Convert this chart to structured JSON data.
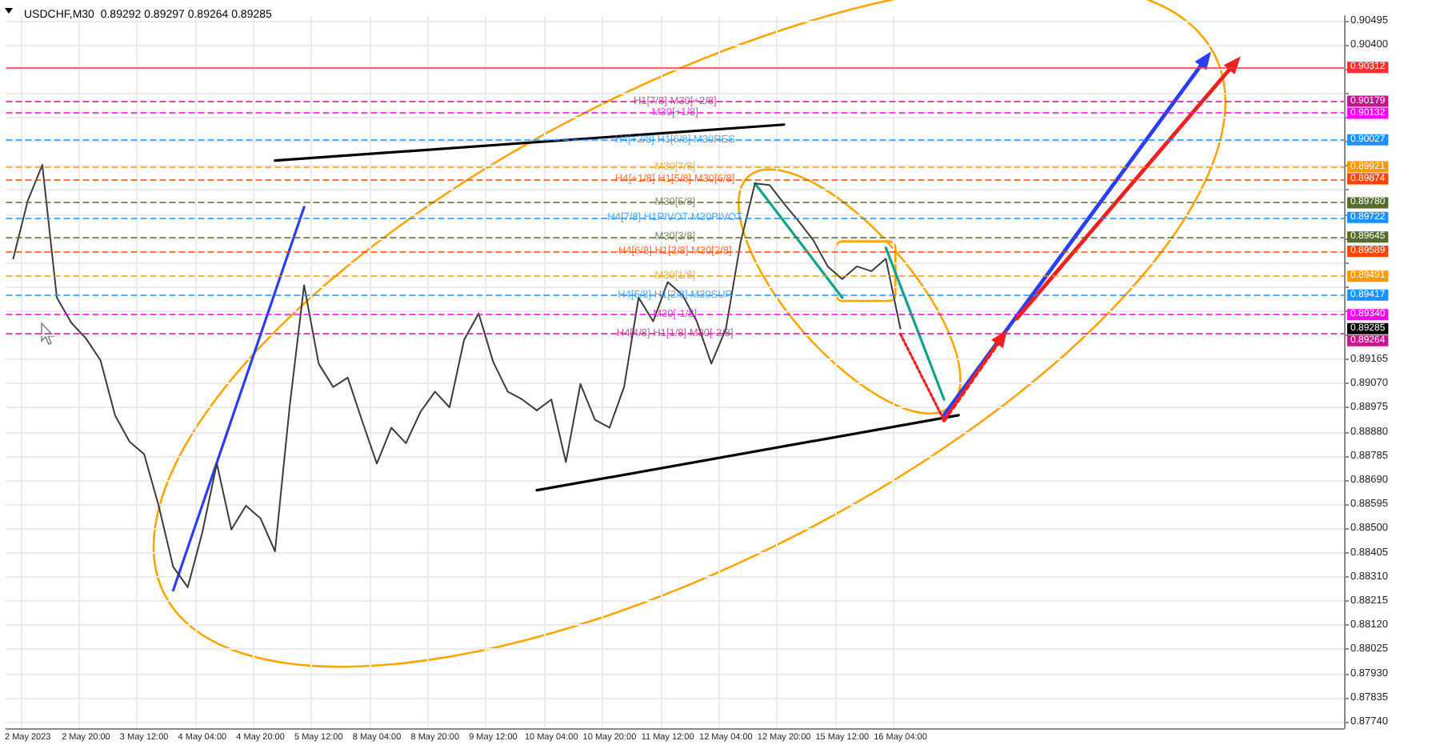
{
  "chart_data": {
    "type": "line",
    "title": "USDCHF,M30  0.89292 0.89297 0.89264 0.89285",
    "grid": true,
    "categories": [
      null,
      "2 May 2023",
      null,
      null,
      null,
      "2 May 20:00",
      null,
      null,
      null,
      "3 May 12:00",
      null,
      null,
      null,
      "4 May 04:00",
      null,
      null,
      null,
      "4 May 20:00",
      null,
      null,
      null,
      "5 May 12:00",
      null,
      null,
      null,
      "8 May 04:00",
      null,
      null,
      null,
      "8 May 20:00",
      null,
      null,
      null,
      "9 May 12:00",
      null,
      null,
      null,
      "10 May 04:00",
      null,
      null,
      null,
      "10 May 20:00",
      null,
      null,
      null,
      "11 May 12:00",
      null,
      null,
      null,
      "12 May 04:00",
      null,
      null,
      null,
      "12 May 20:00",
      null,
      null,
      null,
      "15 May 12:00",
      null,
      null,
      null,
      "16 May 04:00",
      null,
      null,
      null,
      null,
      null,
      null,
      null,
      null,
      null,
      null,
      null,
      null,
      null,
      null,
      null,
      null,
      null,
      null,
      null,
      null,
      null,
      null,
      null,
      null,
      null,
      null,
      null,
      null,
      null,
      null
    ],
    "ylim": [
      0.87715,
      0.90514
    ],
    "annotations": [
      "0.90312",
      "0.90179",
      "0.90132",
      "0.90027",
      "0.89921",
      "0.89874",
      "0.89780",
      "0.89722",
      "0.89645",
      "0.89589",
      "0.89491",
      "0.89417",
      "0.89340",
      "0.89264",
      "0.89285"
    ],
    "yticks": [
      {
        "value": 0.8774,
        "label": "0.87740"
      },
      0.87835,
      {
        "value": 0.8793,
        "label": "0.87930"
      },
      0.88025,
      {
        "value": 0.8812,
        "label": "0.88120"
      },
      0.88215,
      {
        "value": 0.8831,
        "label": "0.88310"
      },
      0.88405,
      {
        "value": 0.885,
        "label": "0.88500"
      },
      0.88595,
      {
        "value": 0.8869,
        "label": "0.88690"
      },
      0.88785,
      {
        "value": 0.8888,
        "label": "0.88880"
      },
      0.88975,
      {
        "value": 0.8907,
        "label": "0.89070"
      },
      0.89165,
      {
        "value": 0.8926,
        "label": null
      },
      {
        "value": 0.89355,
        "label": null
      },
      {
        "value": 0.8945,
        "label": null
      },
      {
        "value": 0.89545,
        "label": null
      },
      {
        "value": 0.8964,
        "label": null
      },
      {
        "value": 0.89735,
        "label": null
      },
      {
        "value": 0.8983,
        "label": null
      },
      {
        "value": 0.89925,
        "label": null
      },
      {
        "value": 0.9002,
        "label": null
      },
      {
        "value": 0.90115,
        "label": null
      },
      {
        "value": 0.9021,
        "label": null
      },
      {
        "value": 0.90305,
        "label": null
      },
      {
        "value": 0.904,
        "label": "0.90400"
      },
      0.90495
    ],
    "series": [
      {
        "color": "#3c3c3c",
        "line_style": "solid",
        "values": [
          0.8956,
          0.89788,
          0.89929,
          0.89407,
          0.89308,
          0.89247,
          0.89161,
          0.88945,
          0.88841,
          0.88792,
          0.88589,
          0.88349,
          0.88269,
          0.88484,
          0.88755,
          0.88496,
          0.88589,
          0.8854,
          0.8841,
          0.88976,
          0.89456,
          0.89148,
          0.89056,
          0.89093,
          0.88921,
          0.88755,
          0.88896,
          0.88835,
          0.88958,
          0.89038,
          0.88976,
          0.89241,
          0.89345,
          0.89155,
          0.89038,
          0.89007,
          0.88964,
          0.89007,
          0.88761,
          0.89068,
          0.88927,
          0.88896,
          0.89056,
          0.89407,
          0.89314,
          0.89468,
          0.89419,
          0.89314,
          0.89148,
          0.89284,
          0.89622,
          0.89856,
          0.8985,
          0.89776,
          0.89708,
          0.89634,
          0.8953,
          0.8948,
          0.8953,
          0.89511,
          0.8956,
          0.89285,
          null,
          null,
          null,
          null,
          null,
          null,
          null,
          null,
          null,
          null,
          null,
          null,
          null,
          null,
          null,
          null,
          null,
          null,
          null,
          null,
          null,
          null,
          null,
          null,
          null,
          null,
          null,
          null,
          null,
          null
        ]
      },
      {
        "color": "#000000",
        "line_style": "solid",
        "values": [
          null,
          null,
          null,
          null,
          null,
          null,
          null,
          null,
          null,
          null,
          null,
          null,
          null,
          null,
          null,
          null,
          null,
          null,
          0.89946,
          null,
          null,
          null,
          null,
          null,
          null,
          null,
          null,
          null,
          null,
          null,
          null,
          null,
          null,
          null,
          null,
          null,
          null,
          null,
          null,
          null,
          null,
          null,
          null,
          null,
          null,
          null,
          null,
          null,
          null,
          null,
          null,
          null,
          null,
          0.90087,
          null,
          null,
          null,
          null,
          null,
          null,
          null,
          null,
          null,
          null,
          null,
          null,
          null,
          null,
          null,
          null,
          null,
          null,
          null,
          null,
          null,
          null,
          null,
          null,
          null,
          null,
          null,
          null,
          null,
          null,
          null,
          null,
          null,
          null,
          null,
          null,
          null,
          null
        ]
      },
      {
        "color": "#2a3ff5",
        "line_style": "solid",
        "values": [
          null,
          null,
          null,
          null,
          null,
          null,
          null,
          null,
          null,
          null,
          null,
          0.88257,
          null,
          null,
          null,
          null,
          null,
          null,
          null,
          null,
          0.89763,
          null,
          null,
          null,
          null,
          null,
          null,
          null,
          null,
          null,
          null,
          null,
          null,
          null,
          null,
          null,
          null,
          null,
          null,
          null,
          null,
          null,
          null,
          null,
          null,
          null,
          null,
          null,
          null,
          null,
          null,
          null,
          null,
          null,
          null,
          null,
          null,
          null,
          null,
          null,
          null,
          null,
          null,
          null,
          null,
          null,
          null,
          null,
          null,
          null,
          null,
          null,
          null,
          null,
          null,
          null,
          null,
          null,
          null,
          null,
          null,
          null,
          null,
          null,
          null,
          null,
          null,
          null,
          null,
          null,
          null,
          null
        ]
      },
      {
        "color": "#000000",
        "line_style": "solid",
        "values": [
          null,
          null,
          null,
          null,
          null,
          null,
          null,
          null,
          null,
          null,
          null,
          null,
          null,
          null,
          null,
          null,
          null,
          null,
          null,
          null,
          null,
          null,
          null,
          null,
          null,
          null,
          null,
          null,
          null,
          null,
          null,
          null,
          null,
          null,
          null,
          null,
          0.8865,
          null,
          null,
          null,
          null,
          null,
          null,
          null,
          null,
          null,
          null,
          null,
          null,
          null,
          null,
          null,
          null,
          null,
          null,
          null,
          null,
          null,
          null,
          null,
          null,
          null,
          null,
          null,
          null,
          0.88945,
          null,
          null,
          null,
          null,
          null,
          null,
          null,
          null,
          null,
          null,
          null,
          null,
          null,
          null,
          null,
          null,
          null,
          null,
          null,
          null,
          null,
          null,
          null,
          null,
          null,
          null
        ]
      },
      {
        "color": "#12a38a",
        "line_style": "solid",
        "values": [
          null,
          null,
          null,
          null,
          null,
          null,
          null,
          null,
          null,
          null,
          null,
          null,
          null,
          null,
          null,
          null,
          null,
          null,
          null,
          null,
          null,
          null,
          null,
          null,
          null,
          null,
          null,
          null,
          null,
          null,
          null,
          null,
          null,
          null,
          null,
          null,
          null,
          null,
          null,
          null,
          null,
          null,
          null,
          null,
          null,
          null,
          null,
          null,
          null,
          null,
          null,
          0.89856,
          null,
          null,
          null,
          null,
          null,
          0.89407,
          null,
          null,
          null,
          null,
          null,
          null,
          null,
          null,
          null,
          null,
          null,
          null,
          null,
          null,
          null,
          null,
          null,
          null,
          null,
          null,
          null,
          null,
          null,
          null,
          null,
          null,
          null,
          null,
          null,
          null,
          null,
          null,
          null,
          null
        ]
      },
      {
        "color": "#12a38a",
        "line_style": "solid",
        "values": [
          null,
          null,
          null,
          null,
          null,
          null,
          null,
          null,
          null,
          null,
          null,
          null,
          null,
          null,
          null,
          null,
          null,
          null,
          null,
          null,
          null,
          null,
          null,
          null,
          null,
          null,
          null,
          null,
          null,
          null,
          null,
          null,
          null,
          null,
          null,
          null,
          null,
          null,
          null,
          null,
          null,
          null,
          null,
          null,
          null,
          null,
          null,
          null,
          null,
          null,
          null,
          null,
          null,
          null,
          null,
          null,
          null,
          null,
          null,
          null,
          0.89603,
          null,
          null,
          null,
          0.89007,
          null,
          null,
          null,
          null,
          null,
          null,
          null,
          null,
          null,
          null,
          null,
          null,
          null,
          null,
          null,
          null,
          null,
          null,
          null,
          null,
          null,
          null,
          null,
          null,
          null,
          null,
          null
        ]
      },
      {
        "color": "#2a3ff5",
        "line_style": "solid",
        "marker": "triangle",
        "values": [
          null,
          null,
          null,
          null,
          null,
          null,
          null,
          null,
          null,
          null,
          null,
          null,
          null,
          null,
          null,
          null,
          null,
          null,
          null,
          null,
          null,
          null,
          null,
          null,
          null,
          null,
          null,
          null,
          null,
          null,
          null,
          null,
          null,
          null,
          null,
          null,
          null,
          null,
          null,
          null,
          null,
          null,
          null,
          null,
          null,
          null,
          null,
          null,
          null,
          null,
          null,
          null,
          null,
          null,
          null,
          null,
          null,
          null,
          null,
          null,
          null,
          null,
          null,
          null,
          0.88946,
          null,
          null,
          null,
          null,
          null,
          null,
          null,
          null,
          null,
          null,
          null,
          null,
          null,
          null,
          null,
          null,
          null,
          0.90346,
          null,
          null,
          null,
          null,
          null,
          null,
          null,
          null,
          null
        ]
      },
      {
        "color": "#f02020",
        "line_style": "solid",
        "marker": "triangle",
        "values": [
          null,
          null,
          null,
          null,
          null,
          null,
          null,
          null,
          null,
          null,
          null,
          null,
          null,
          null,
          null,
          null,
          null,
          null,
          null,
          null,
          null,
          null,
          null,
          null,
          null,
          null,
          null,
          null,
          null,
          null,
          null,
          null,
          null,
          null,
          null,
          null,
          null,
          null,
          null,
          null,
          null,
          null,
          null,
          null,
          null,
          null,
          null,
          null,
          null,
          null,
          null,
          null,
          null,
          null,
          null,
          null,
          null,
          null,
          null,
          null,
          null,
          null,
          null,
          null,
          null,
          null,
          null,
          null,
          null,
          0.89325,
          null,
          null,
          null,
          null,
          null,
          null,
          null,
          null,
          null,
          null,
          null,
          null,
          null,
          null,
          0.90329,
          null,
          null,
          null,
          null,
          null,
          null,
          null
        ]
      },
      {
        "color": "#f02020",
        "line_style": "dotted",
        "values": [
          null,
          null,
          null,
          null,
          null,
          null,
          null,
          null,
          null,
          null,
          null,
          null,
          null,
          null,
          null,
          null,
          null,
          null,
          null,
          null,
          null,
          null,
          null,
          null,
          null,
          null,
          null,
          null,
          null,
          null,
          null,
          null,
          null,
          null,
          null,
          null,
          null,
          null,
          null,
          null,
          null,
          null,
          null,
          null,
          null,
          null,
          null,
          null,
          null,
          null,
          null,
          null,
          null,
          null,
          null,
          null,
          null,
          null,
          null,
          null,
          null,
          0.89264,
          null,
          null,
          0.88925,
          null,
          null,
          null,
          null,
          null,
          null,
          null,
          null,
          null,
          null,
          null,
          null,
          null,
          null,
          null,
          null,
          null,
          null,
          null,
          null,
          null,
          null,
          null,
          null,
          null,
          null,
          null
        ]
      },
      {
        "color": "#f02020",
        "line_style": "dotted",
        "marker": "triangle",
        "values": [
          null,
          null,
          null,
          null,
          null,
          null,
          null,
          null,
          null,
          null,
          null,
          null,
          null,
          null,
          null,
          null,
          null,
          null,
          null,
          null,
          null,
          null,
          null,
          null,
          null,
          null,
          null,
          null,
          null,
          null,
          null,
          null,
          null,
          null,
          null,
          null,
          null,
          null,
          null,
          null,
          null,
          null,
          null,
          null,
          null,
          null,
          null,
          null,
          null,
          null,
          null,
          null,
          null,
          null,
          null,
          null,
          null,
          null,
          null,
          null,
          null,
          null,
          null,
          null,
          0.88925,
          null,
          null,
          null,
          0.89253,
          null,
          null,
          null,
          null,
          null,
          null,
          null,
          null,
          null,
          null,
          null,
          null,
          null,
          null,
          null,
          null,
          null,
          null,
          null,
          null,
          null,
          null,
          null
        ]
      }
    ],
    "ref_lines": [
      {
        "axis": "y",
        "value": 0.90312,
        "label": null,
        "color": "#ff3030",
        "line_style": "solid"
      },
      {
        "axis": "y",
        "value": 0.90179,
        "label": "H1[7/8] M30[+2/8]",
        "color": "#c2188b",
        "line_style": "dashed"
      },
      {
        "axis": "y",
        "value": 0.90132,
        "label": "M30[+1/8]",
        "color": "#ff00ff",
        "line_style": "dashed"
      },
      {
        "axis": "y",
        "value": 0.90027,
        "label": "H4[+2/8] H1[6/8] M30RES",
        "color": "#1e90ff",
        "line_style": "dashed"
      },
      {
        "axis": "y",
        "value": 0.89921,
        "label": "M30[7/8]",
        "color": "#ff9900",
        "line_style": "dashed"
      },
      {
        "axis": "y",
        "value": 0.89874,
        "label": "H4[+1/8] H1[5/8] M30[6/8]",
        "color": "#ff4500",
        "line_style": "dashed"
      },
      {
        "axis": "y",
        "value": 0.8978,
        "label": "M30[5/8]",
        "color": "#556b2f",
        "line_style": "dashed"
      },
      {
        "axis": "y",
        "value": 0.89722,
        "label": "H4[7/8] H1PIVOT M30PIVOT",
        "color": "#1e90ff",
        "line_style": "dashed"
      },
      {
        "axis": "y",
        "value": 0.89645,
        "label": "M30[3/8]",
        "color": "#556b2f",
        "line_style": "dashed"
      },
      {
        "axis": "y",
        "value": 0.89589,
        "label": "H4[6/8] H1[3/8] M30[2/8]",
        "color": "#ff4500",
        "line_style": "dashed"
      },
      {
        "axis": "y",
        "value": 0.89491,
        "label": "M30[1/8]",
        "color": "#ff9900",
        "line_style": "dashed"
      },
      {
        "axis": "y",
        "value": 0.89417,
        "label": "H4[5/8] H1[2/8] M30SUP",
        "color": "#1e90ff",
        "line_style": "dashed"
      },
      {
        "axis": "y",
        "value": 0.8934,
        "label": "M30[-1/8]",
        "color": "#ff00ff",
        "line_style": "dashed"
      },
      {
        "axis": "y",
        "value": 0.89264,
        "label": "H4[4/8] H1[1/8] M30[-2/8]",
        "color": "#c2188b",
        "line_style": "dashed"
      }
    ]
  }
}
